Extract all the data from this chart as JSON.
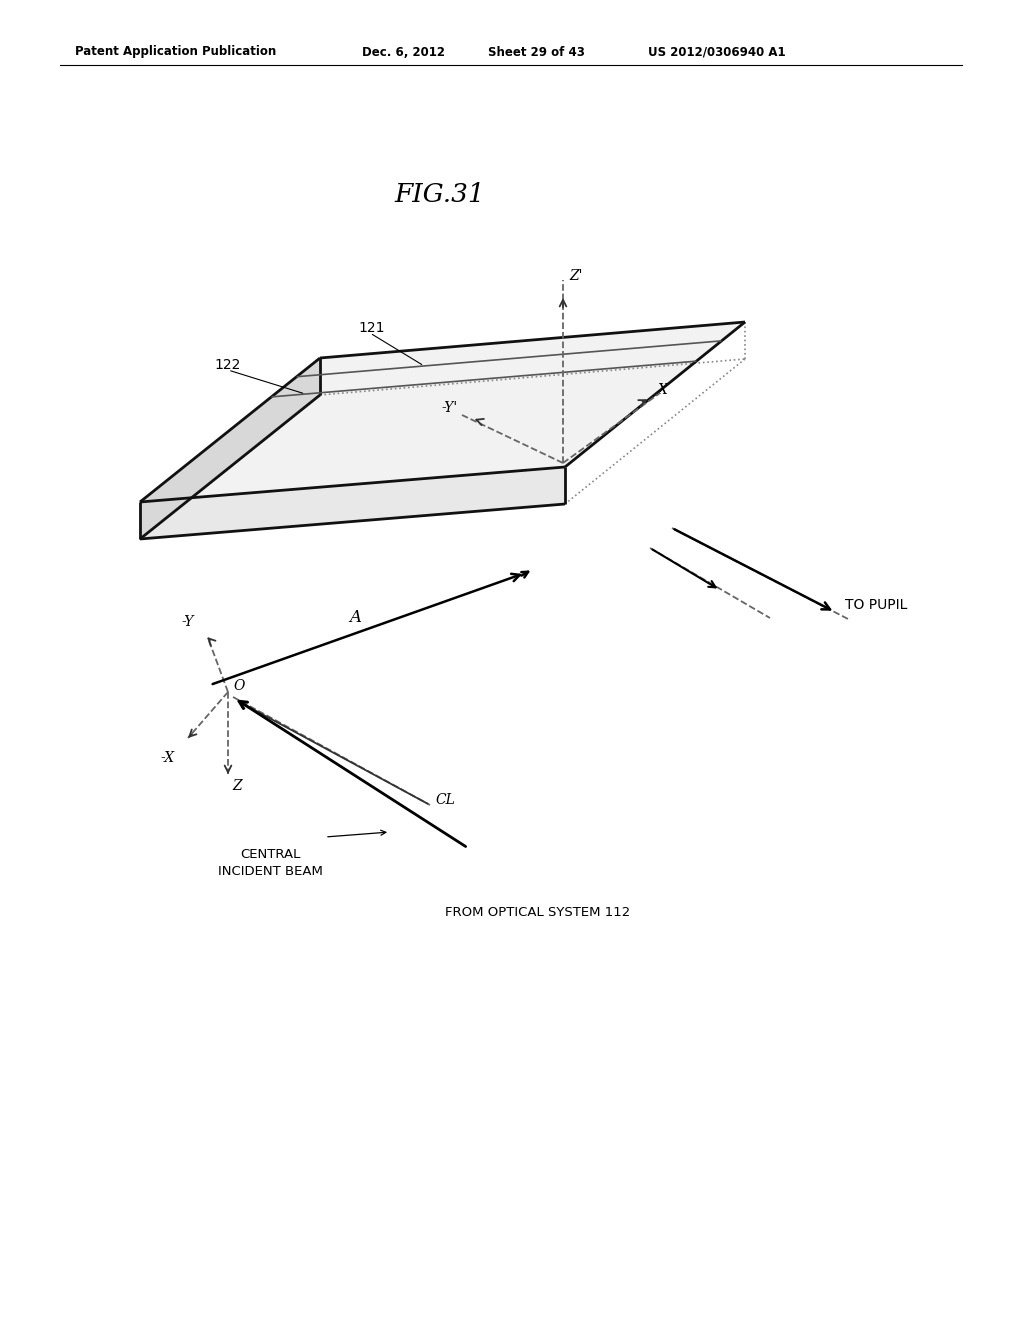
{
  "title": "FIG.31",
  "header_left": "Patent Application Publication",
  "header_mid": "Dec. 6, 2012",
  "header_sheet": "Sheet 29 of 43",
  "header_right": "US 2012/0306940 A1",
  "bg_color": "#ffffff",
  "line_color": "#000000"
}
